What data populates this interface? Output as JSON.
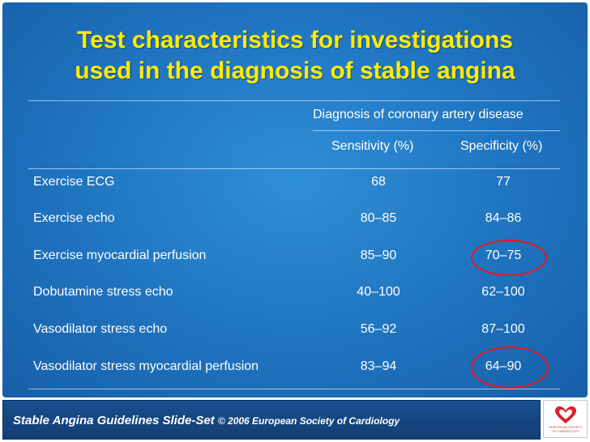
{
  "title": {
    "line1": "Test characteristics for investigations",
    "line2": "used in the diagnosis of stable angina"
  },
  "table": {
    "group_header": "Diagnosis of coronary artery disease",
    "columns": [
      "Sensitivity (%)",
      "Specificity (%)"
    ],
    "rows": [
      {
        "test": "Exercise ECG",
        "sensitivity": "68",
        "specificity": "77",
        "highlighted": false
      },
      {
        "test": "Exercise echo",
        "sensitivity": "80–85",
        "specificity": "84–86",
        "highlighted": false
      },
      {
        "test": "Exercise myocardial perfusion",
        "sensitivity": "85–90",
        "specificity": "70–75",
        "highlighted": true
      },
      {
        "test": "Dobutamine stress echo",
        "sensitivity": "40–100",
        "specificity": "62–100",
        "highlighted": false
      },
      {
        "test": "Vasodilator stress echo",
        "sensitivity": "56–92",
        "specificity": "87–100",
        "highlighted": false
      },
      {
        "test": "Vasodilator stress myocardial perfusion",
        "sensitivity": "83–94",
        "specificity": "64–90",
        "highlighted": true
      }
    ]
  },
  "footer": {
    "series": "Stable Angina Guidelines Slide-Set",
    "copyright": "© 2006 European Society of Cardiology"
  },
  "logo": {
    "icon": "heart-logo-icon",
    "caption": "EUROPEAN SOCIETY OF CARDIOLOGY"
  },
  "colors": {
    "title": "#ffec00",
    "background": "#1f73bf",
    "highlight_circle": "#e8161d",
    "footer_bar": "#164681"
  }
}
